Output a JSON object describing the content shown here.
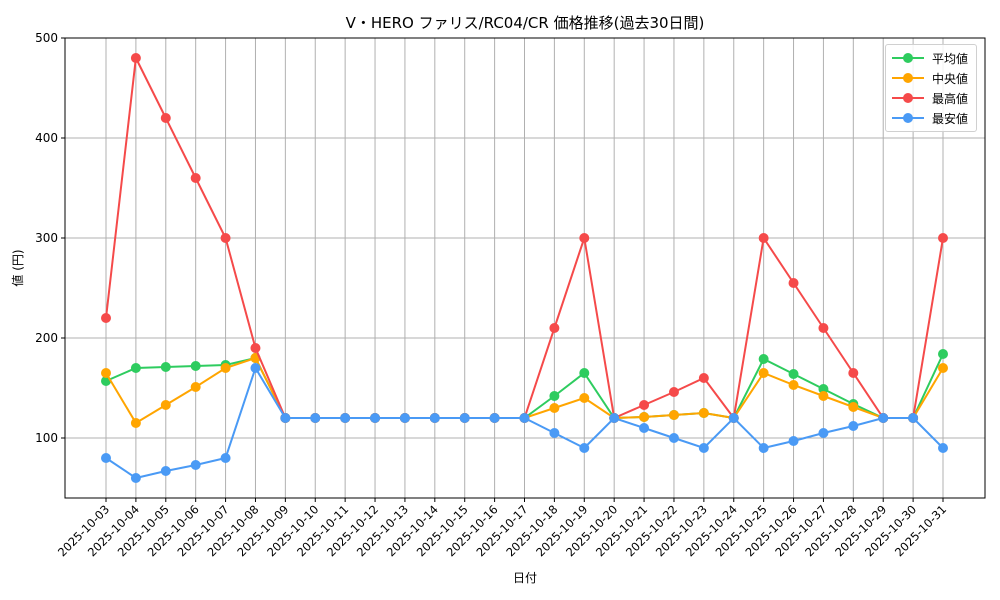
{
  "title": "V・HERO ファリス/RC04/CR 価格推移(過去30日間)",
  "chart_data": {
    "type": "line",
    "title": "V・HERO ファリス/RC04/CR 価格推移(過去30日間)",
    "xlabel": "日付",
    "ylabel": "値 (円)",
    "ylim": [
      40,
      500
    ],
    "yticks": [
      100,
      200,
      300,
      400,
      500
    ],
    "grid": true,
    "legend_position": "upper right",
    "categories": [
      "2025-10-03",
      "2025-10-04",
      "2025-10-05",
      "2025-10-06",
      "2025-10-07",
      "2025-10-08",
      "2025-10-09",
      "2025-10-10",
      "2025-10-11",
      "2025-10-12",
      "2025-10-13",
      "2025-10-14",
      "2025-10-15",
      "2025-10-16",
      "2025-10-17",
      "2025-10-18",
      "2025-10-19",
      "2025-10-20",
      "2025-10-21",
      "2025-10-22",
      "2025-10-23",
      "2025-10-24",
      "2025-10-25",
      "2025-10-26",
      "2025-10-27",
      "2025-10-28",
      "2025-10-29",
      "2025-10-30",
      "2025-10-31"
    ],
    "series": [
      {
        "name": "平均値",
        "color": "#2ecc5f",
        "values": [
          157,
          170,
          171,
          172,
          173,
          180,
          120,
          120,
          120,
          120,
          120,
          120,
          120,
          120,
          120,
          142,
          165,
          120,
          121,
          123,
          125,
          120,
          179,
          164,
          149,
          134,
          120,
          120,
          184
        ]
      },
      {
        "name": "中央値",
        "color": "#ffa500",
        "values": [
          165,
          115,
          133,
          151,
          170,
          180,
          120,
          120,
          120,
          120,
          120,
          120,
          120,
          120,
          120,
          130,
          140,
          120,
          121,
          123,
          125,
          120,
          165,
          153,
          142,
          131,
          120,
          120,
          170
        ]
      },
      {
        "name": "最高値",
        "color": "#f54a4a",
        "values": [
          220,
          480,
          420,
          360,
          300,
          190,
          120,
          120,
          120,
          120,
          120,
          120,
          120,
          120,
          120,
          210,
          300,
          120,
          133,
          146,
          160,
          120,
          300,
          255,
          210,
          165,
          120,
          120,
          300
        ]
      },
      {
        "name": "最安値",
        "color": "#4a9af5",
        "values": [
          80,
          60,
          67,
          73,
          80,
          170,
          120,
          120,
          120,
          120,
          120,
          120,
          120,
          120,
          120,
          105,
          90,
          120,
          110,
          100,
          90,
          120,
          90,
          97,
          105,
          112,
          120,
          120,
          90
        ]
      }
    ]
  }
}
